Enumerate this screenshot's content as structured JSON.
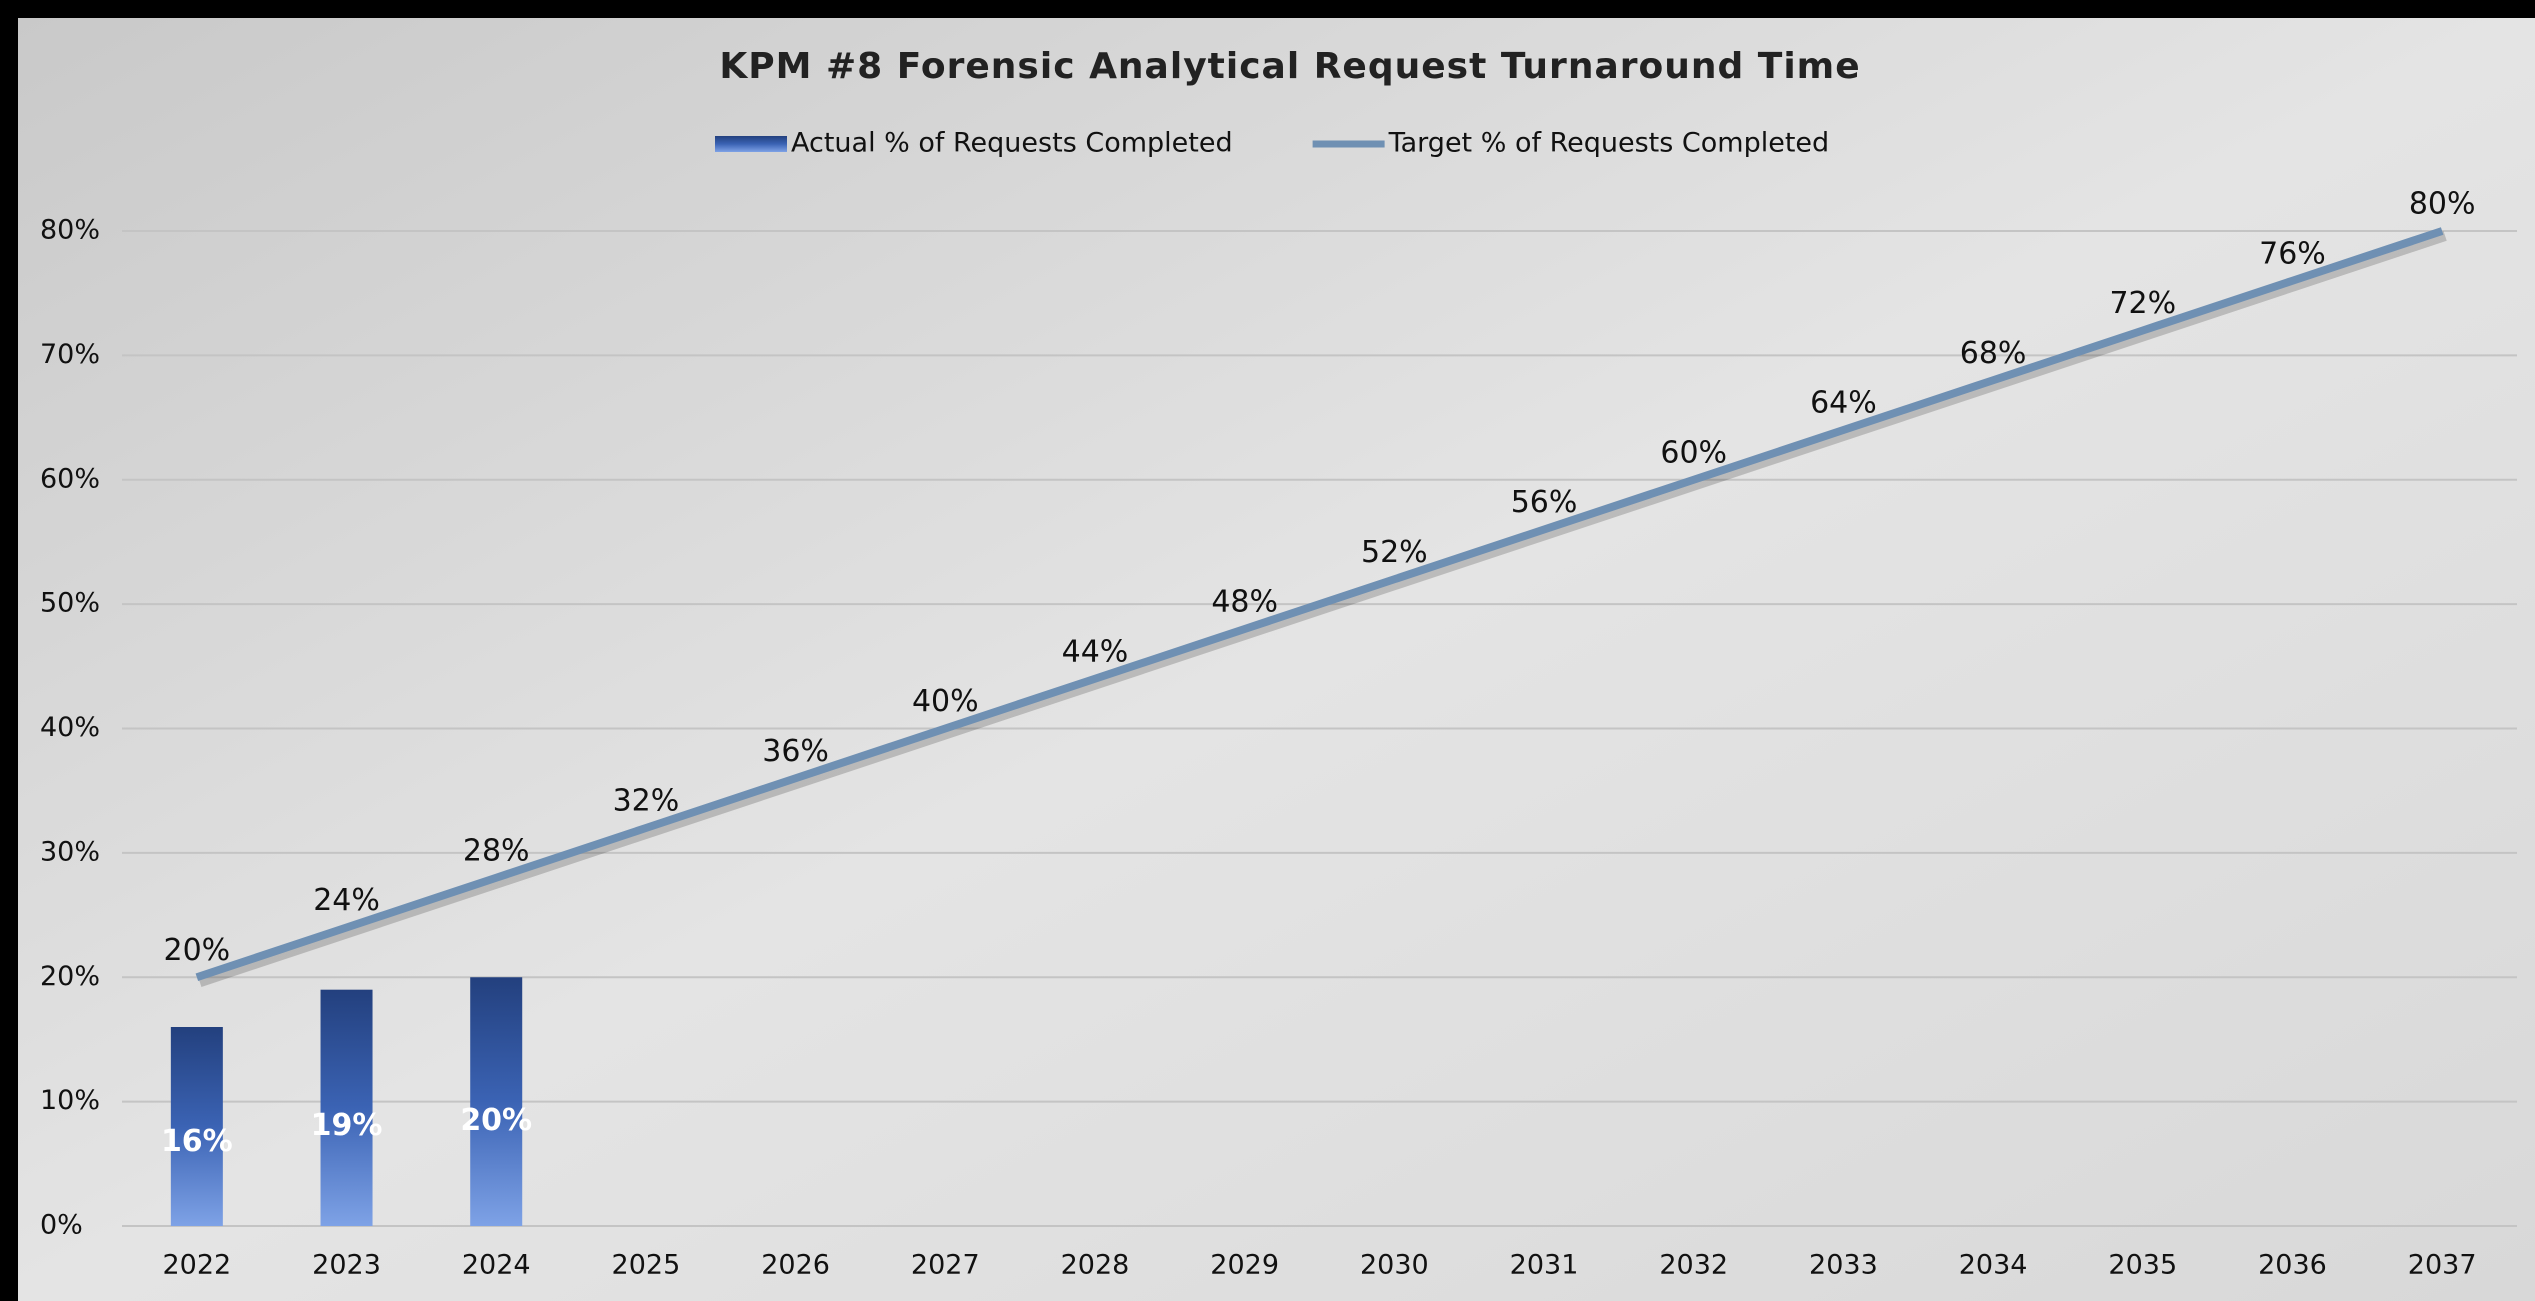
{
  "chart_data": {
    "type": "bar",
    "title": "KPM #8 Forensic Analytical Request Turnaround Time",
    "categories": [
      "2022",
      "2023",
      "2024",
      "2025",
      "2026",
      "2027",
      "2028",
      "2029",
      "2030",
      "2031",
      "2032",
      "2033",
      "2034",
      "2035",
      "2036",
      "2037"
    ],
    "series": [
      {
        "name": "Actual % of Requests Completed",
        "type": "bar",
        "color": "#2d4f96",
        "values": [
          16,
          19,
          20,
          null,
          null,
          null,
          null,
          null,
          null,
          null,
          null,
          null,
          null,
          null,
          null,
          null
        ],
        "value_labels": [
          "16%",
          "19%",
          "20%",
          null,
          null,
          null,
          null,
          null,
          null,
          null,
          null,
          null,
          null,
          null,
          null,
          null
        ]
      },
      {
        "name": "Target % of Requests Completed",
        "type": "line",
        "color": "#6f90b3",
        "values": [
          20,
          24,
          28,
          32,
          36,
          40,
          44,
          48,
          52,
          56,
          60,
          64,
          68,
          72,
          76,
          80
        ],
        "value_labels": [
          "20%",
          "24%",
          "28%",
          "32%",
          "36%",
          "40%",
          "44%",
          "48%",
          "52%",
          "56%",
          "60%",
          "64%",
          "68%",
          "72%",
          "76%",
          "80%"
        ]
      }
    ],
    "ylim": [
      0,
      80
    ],
    "yticks": [
      {
        "value": 0,
        "label": "0%"
      },
      {
        "value": 10,
        "label": "10%"
      },
      {
        "value": 20,
        "label": "20%"
      },
      {
        "value": 30,
        "label": "30%"
      },
      {
        "value": 40,
        "label": "40%"
      },
      {
        "value": 50,
        "label": "50%"
      },
      {
        "value": 60,
        "label": "60%"
      },
      {
        "value": 70,
        "label": "70%"
      },
      {
        "value": 80,
        "label": "80%"
      }
    ],
    "grid": true,
    "legend": "top"
  }
}
